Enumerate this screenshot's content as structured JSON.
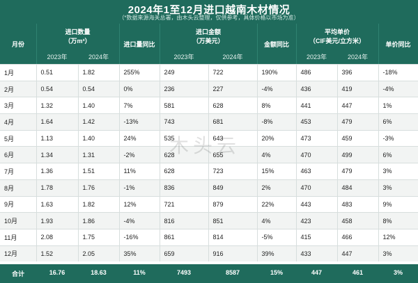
{
  "title": "2024年1至12月进口越南木材情况",
  "subtitle": "（*数据来源海关总署，由木头云整理，仅供参考，具体价格以市场为准）",
  "watermark": "木头云",
  "header": {
    "month": "月份",
    "qty_group_line1": "进口数量",
    "qty_group_line2": "（万m³）",
    "qty_yoy": "进口量同比",
    "amt_group_line1": "进口金额",
    "amt_group_line2": "（万美元）",
    "amt_yoy": "金额同比",
    "price_group_line1": "平均单价",
    "price_group_line2": "（CIF美元/立方米）",
    "price_yoy": "单价同比",
    "y2023": "2023年",
    "y2024": "2024年"
  },
  "rows": [
    {
      "month": "1月",
      "q23": "0.51",
      "q24": "1.82",
      "qy": "255%",
      "qy_s": "pos",
      "a23": "249",
      "a24": "722",
      "ay": "190%",
      "ay_s": "pos",
      "p23": "486",
      "p24": "396",
      "py": "-18%",
      "py_s": "neg"
    },
    {
      "month": "2月",
      "q23": "0.54",
      "q24": "0.54",
      "qy": "0%",
      "qy_s": "zero",
      "a23": "236",
      "a24": "227",
      "ay": "-4%",
      "ay_s": "neg",
      "p23": "436",
      "p24": "419",
      "py": "-4%",
      "py_s": "neg"
    },
    {
      "month": "3月",
      "q23": "1.32",
      "q24": "1.40",
      "qy": "7%",
      "qy_s": "pos",
      "a23": "581",
      "a24": "628",
      "ay": "8%",
      "ay_s": "pos",
      "p23": "441",
      "p24": "447",
      "py": "1%",
      "py_s": "pos"
    },
    {
      "month": "4月",
      "q23": "1.64",
      "q24": "1.42",
      "qy": "-13%",
      "qy_s": "neg",
      "a23": "743",
      "a24": "681",
      "ay": "-8%",
      "ay_s": "neg",
      "p23": "453",
      "p24": "479",
      "py": "6%",
      "py_s": "pos"
    },
    {
      "month": "5月",
      "q23": "1.13",
      "q24": "1.40",
      "qy": "24%",
      "qy_s": "pos",
      "a23": "535",
      "a24": "643",
      "ay": "20%",
      "ay_s": "pos",
      "p23": "473",
      "p24": "459",
      "py": "-3%",
      "py_s": "neg"
    },
    {
      "month": "6月",
      "q23": "1.34",
      "q24": "1.31",
      "qy": "-2%",
      "qy_s": "neg",
      "a23": "628",
      "a24": "655",
      "ay": "4%",
      "ay_s": "pos",
      "p23": "470",
      "p24": "499",
      "py": "6%",
      "py_s": "pos"
    },
    {
      "month": "7月",
      "q23": "1.36",
      "q24": "1.51",
      "qy": "11%",
      "qy_s": "pos",
      "a23": "628",
      "a24": "723",
      "ay": "15%",
      "ay_s": "pos",
      "p23": "463",
      "p24": "479",
      "py": "3%",
      "py_s": "pos"
    },
    {
      "month": "8月",
      "q23": "1.78",
      "q24": "1.76",
      "qy": "-1%",
      "qy_s": "neg",
      "a23": "836",
      "a24": "849",
      "ay": "2%",
      "ay_s": "pos",
      "p23": "470",
      "p24": "484",
      "py": "3%",
      "py_s": "pos"
    },
    {
      "month": "9月",
      "q23": "1.63",
      "q24": "1.82",
      "qy": "12%",
      "qy_s": "pos",
      "a23": "721",
      "a24": "879",
      "ay": "22%",
      "ay_s": "pos",
      "p23": "443",
      "p24": "483",
      "py": "9%",
      "py_s": "pos"
    },
    {
      "month": "10月",
      "q23": "1.93",
      "q24": "1.86",
      "qy": "-4%",
      "qy_s": "neg",
      "a23": "816",
      "a24": "851",
      "ay": "4%",
      "ay_s": "pos",
      "p23": "423",
      "p24": "458",
      "py": "8%",
      "py_s": "pos"
    },
    {
      "month": "11月",
      "q23": "2.08",
      "q24": "1.75",
      "qy": "-16%",
      "qy_s": "neg",
      "a23": "861",
      "a24": "814",
      "ay": "-5%",
      "ay_s": "neg",
      "p23": "415",
      "p24": "466",
      "py": "12%",
      "py_s": "pos"
    },
    {
      "month": "12月",
      "q23": "1.52",
      "q24": "2.05",
      "qy": "35%",
      "qy_s": "pos",
      "a23": "659",
      "a24": "916",
      "ay": "39%",
      "ay_s": "pos",
      "p23": "433",
      "p24": "447",
      "py": "3%",
      "py_s": "pos"
    }
  ],
  "total": {
    "label": "合计",
    "q23": "16.76",
    "q24": "18.63",
    "qy": "11%",
    "a23": "7493",
    "a24": "8587",
    "ay": "15%",
    "p23": "447",
    "p24": "461",
    "py": "3%"
  },
  "colors": {
    "header_bg": "#1f6b5c",
    "positive": "#d32f2f",
    "negative": "#2e8b57"
  }
}
